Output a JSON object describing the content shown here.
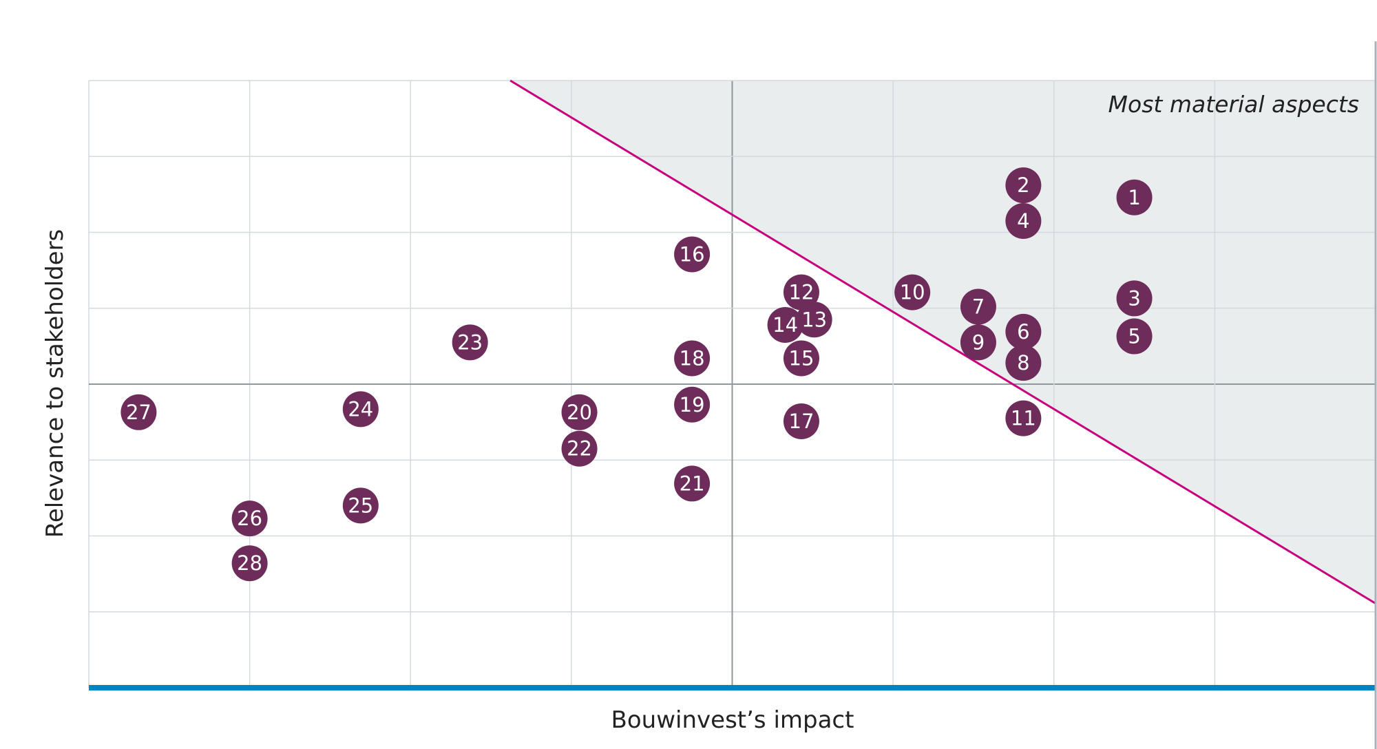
{
  "chart_data": {
    "type": "scatter",
    "title": "",
    "xlabel": "Bouwinvest’s impact",
    "ylabel": "Relevance to stakeholders",
    "xlim": [
      0,
      8
    ],
    "ylim": [
      0,
      8
    ],
    "grid": true,
    "annotation": "Most material aspects",
    "threshold_line": {
      "from": [
        2.62,
        8
      ],
      "to": [
        8,
        1.11
      ]
    },
    "colors": {
      "bubble": "#6e2c5a",
      "threshold": "#c8007d",
      "shade": "#e9edee",
      "axis": "#0083c1",
      "grid": "#d3d9dd",
      "center": "#8c979e"
    },
    "points": [
      {
        "label": "1",
        "x": 6.5,
        "y": 6.46
      },
      {
        "label": "2",
        "x": 5.81,
        "y": 6.62
      },
      {
        "label": "3",
        "x": 6.5,
        "y": 5.13
      },
      {
        "label": "4",
        "x": 5.81,
        "y": 6.15
      },
      {
        "label": "5",
        "x": 6.5,
        "y": 4.63
      },
      {
        "label": "6",
        "x": 5.81,
        "y": 4.69
      },
      {
        "label": "7",
        "x": 5.53,
        "y": 5.02
      },
      {
        "label": "8",
        "x": 5.81,
        "y": 4.28
      },
      {
        "label": "9",
        "x": 5.53,
        "y": 4.55
      },
      {
        "label": "10",
        "x": 5.12,
        "y": 5.21
      },
      {
        "label": "11",
        "x": 5.81,
        "y": 3.55
      },
      {
        "label": "12",
        "x": 4.43,
        "y": 5.21
      },
      {
        "label": "13",
        "x": 4.51,
        "y": 4.85
      },
      {
        "label": "14",
        "x": 4.33,
        "y": 4.78
      },
      {
        "label": "15",
        "x": 4.43,
        "y": 4.34
      },
      {
        "label": "16",
        "x": 3.75,
        "y": 5.71
      },
      {
        "label": "17",
        "x": 4.43,
        "y": 3.51
      },
      {
        "label": "18",
        "x": 3.75,
        "y": 4.34
      },
      {
        "label": "19",
        "x": 3.75,
        "y": 3.73
      },
      {
        "label": "20",
        "x": 3.05,
        "y": 3.63
      },
      {
        "label": "21",
        "x": 3.75,
        "y": 2.69
      },
      {
        "label": "22",
        "x": 3.05,
        "y": 3.15
      },
      {
        "label": "23",
        "x": 2.37,
        "y": 4.55
      },
      {
        "label": "24",
        "x": 1.69,
        "y": 3.67
      },
      {
        "label": "25",
        "x": 1.69,
        "y": 2.4
      },
      {
        "label": "26",
        "x": 1.0,
        "y": 2.23
      },
      {
        "label": "27",
        "x": 0.31,
        "y": 3.63
      },
      {
        "label": "28",
        "x": 1.0,
        "y": 1.64
      }
    ]
  }
}
